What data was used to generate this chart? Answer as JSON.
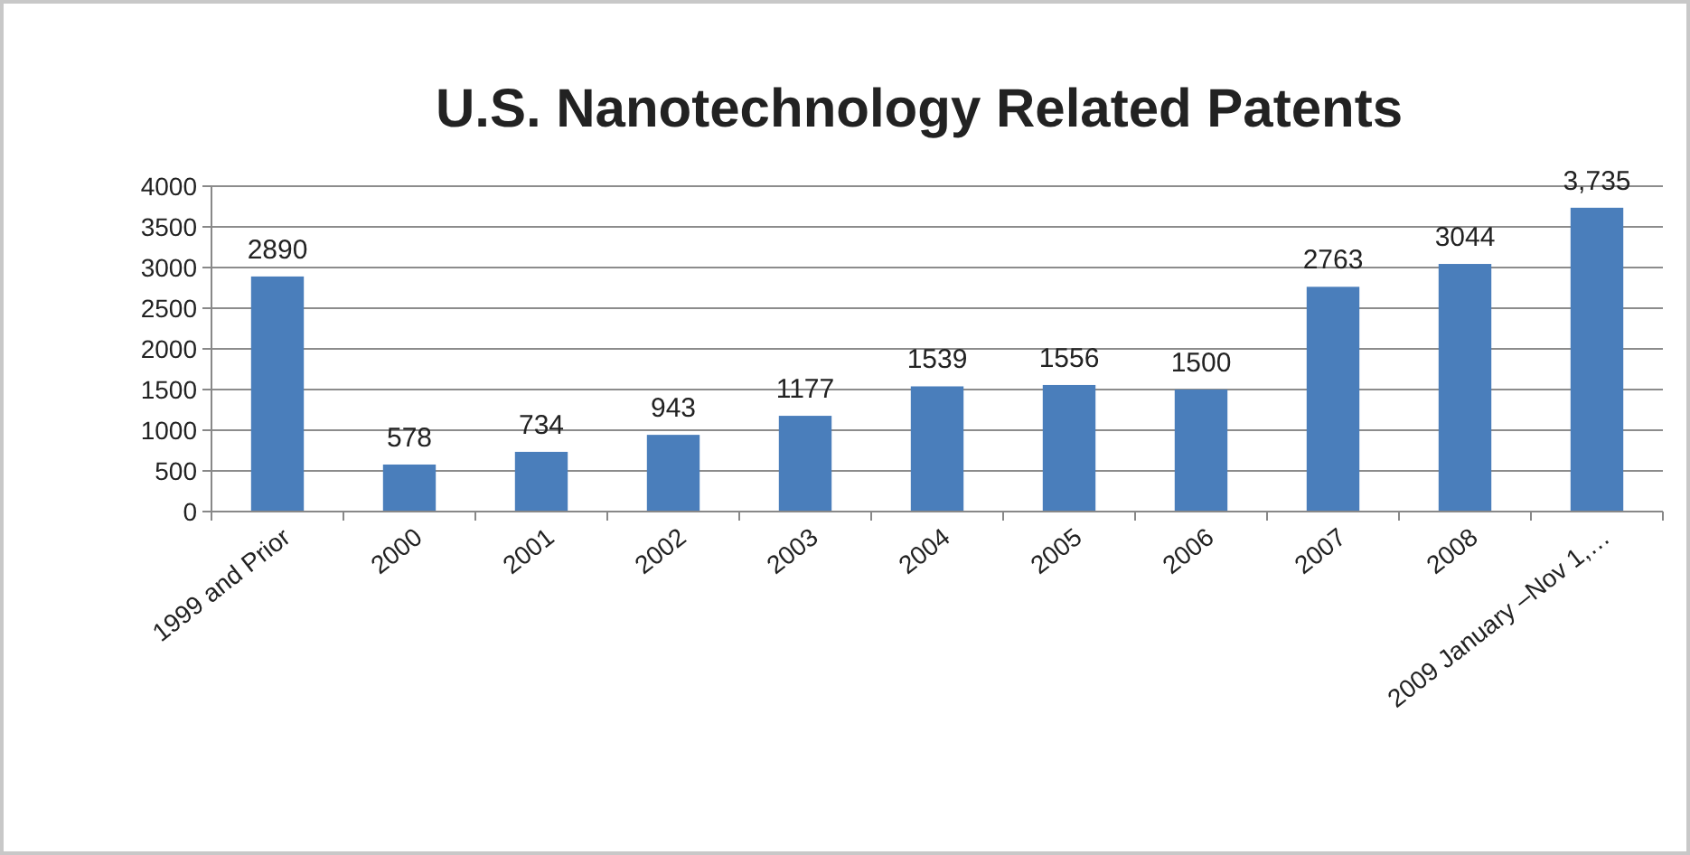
{
  "chart_data": {
    "type": "bar",
    "title": "U.S. Nanotechnology Related Patents",
    "categories": [
      "1999 and Prior",
      "2000",
      "2001",
      "2002",
      "2003",
      "2004",
      "2005",
      "2006",
      "2007",
      "2008",
      "2009 January –Nov 1,…"
    ],
    "values": [
      2890,
      578,
      734,
      943,
      1177,
      1539,
      1556,
      1500,
      2763,
      3044,
      3735
    ],
    "value_labels": [
      "2890",
      "578",
      "734",
      "943",
      "1177",
      "1539",
      "1556",
      "1500",
      "2763",
      "3044",
      "3,735"
    ],
    "color": "#4a7ebb",
    "ylim": [
      0,
      4000
    ],
    "yticks": [
      0,
      500,
      1000,
      1500,
      2000,
      2500,
      3000,
      3500,
      4000
    ],
    "grid": "y"
  }
}
